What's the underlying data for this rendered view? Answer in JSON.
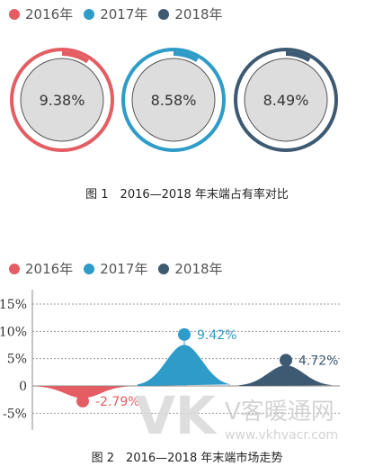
{
  "legend": [
    {
      "label": "2016年",
      "color": "#e35d62"
    },
    {
      "label": "2017年",
      "color": "#2e9bc8"
    },
    {
      "label": "2018年",
      "color": "#3d5a72"
    }
  ],
  "figure1": {
    "caption": "图 1　2016—2018 年末端占有率对比"
  },
  "figure2": {
    "caption": "图 2　2016—2018 年末端市场走势"
  },
  "watermark": {
    "logo": "VK",
    "name": "V客暖通网",
    "url": "www.vkhvacr.com"
  },
  "chart_data": [
    {
      "type": "pie",
      "series": [
        {
          "name": "2016年",
          "value": 9.38,
          "label": "9.38%"
        },
        {
          "name": "2017年",
          "value": 8.58,
          "label": "8.58%"
        },
        {
          "name": "2018年",
          "value": 8.49,
          "label": "8.49%"
        }
      ],
      "max": 100
    },
    {
      "type": "area",
      "series": [
        {
          "name": "2016年",
          "value": -2.79,
          "label": "-2.79%"
        },
        {
          "name": "2017年",
          "value": 9.42,
          "label": "9.42%"
        },
        {
          "name": "2018年",
          "value": 4.72,
          "label": "4.72%"
        }
      ],
      "y_ticks": [
        "15%",
        "10%",
        "5%",
        "0",
        "-5%"
      ],
      "y_tick_values": [
        15,
        10,
        5,
        0,
        -5
      ],
      "ylim": [
        -7,
        17
      ],
      "grid": true
    }
  ]
}
